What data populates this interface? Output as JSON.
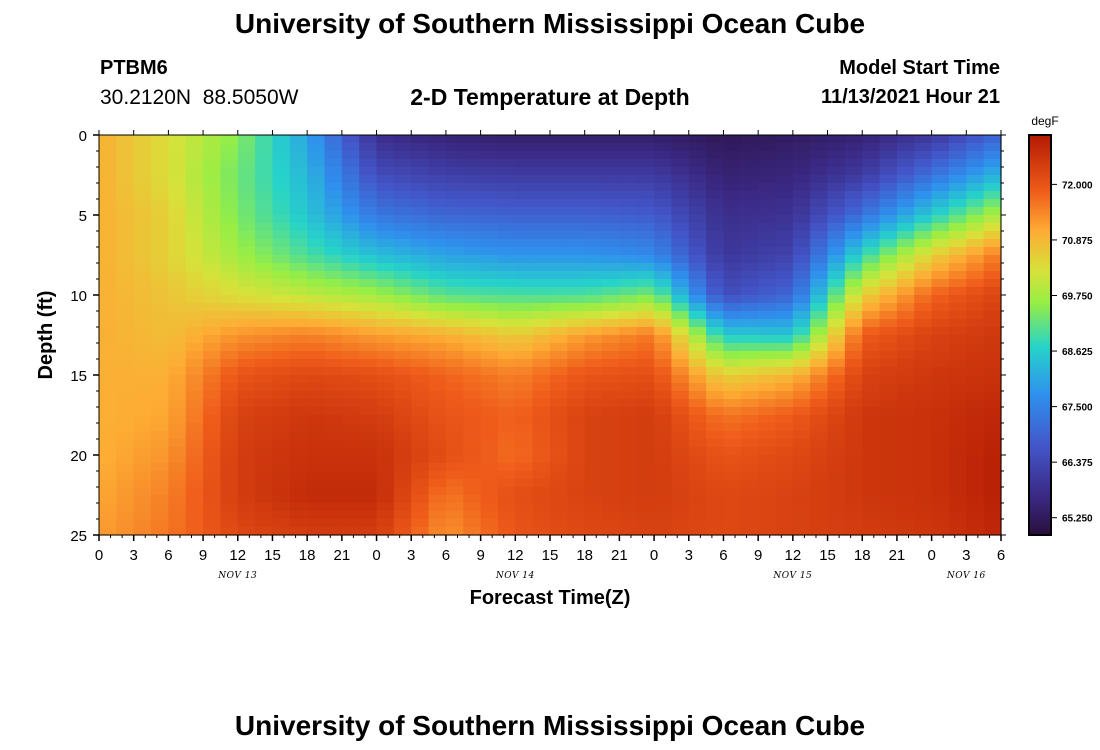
{
  "title": "University of Southern Mississippi Ocean Cube",
  "station": {
    "name": "PTBM6",
    "coords": "30.2120N  88.5050W"
  },
  "subtitle": "2-D Temperature at Depth",
  "model_start": {
    "label": "Model Start Time",
    "value": "11/13/2021 Hour 21"
  },
  "footer_title": "University of Southern Mississippi Ocean Cube",
  "chart_data": {
    "type": "heatmap",
    "title": "2-D Temperature at Depth",
    "xlabel": "Forecast Time(Z)",
    "ylabel": "Depth (ft)",
    "x_tick_labels": [
      "0",
      "3",
      "6",
      "9",
      "12",
      "15",
      "18",
      "21",
      "0",
      "3",
      "6",
      "9",
      "12",
      "15",
      "18",
      "21",
      "0",
      "3",
      "6",
      "9",
      "12",
      "15",
      "18",
      "21",
      "0",
      "3",
      "6"
    ],
    "date_labels": [
      "NOV 13",
      "NOV 14",
      "NOV 15",
      "NOV 16"
    ],
    "y_ticks": [
      0,
      5,
      10,
      15,
      20,
      25
    ],
    "ylim": [
      0,
      25
    ],
    "x_range_hours": [
      0,
      78
    ],
    "colorbar": {
      "unit": "degF",
      "ticks": [
        "72.000",
        "70.875",
        "69.750",
        "68.625",
        "67.500",
        "66.375",
        "65.250"
      ],
      "min": 64.9,
      "max": 73.0
    },
    "grid_hours": [
      0,
      6,
      12,
      18,
      24,
      30,
      36,
      42,
      48,
      54,
      60,
      66,
      72,
      78
    ],
    "grid_depths_ft": [
      0,
      2.5,
      5,
      7.5,
      10,
      12.5,
      15,
      17.5,
      20,
      22.5,
      25
    ],
    "temperature_degF": [
      [
        71.0,
        70.3,
        69.5,
        68.0,
        65.8,
        65.5,
        65.4,
        65.4,
        65.4,
        65.2,
        65.3,
        65.5,
        66.0,
        67.0
      ],
      [
        71.0,
        70.3,
        69.3,
        68.3,
        66.5,
        66.2,
        66.1,
        66.1,
        66.1,
        65.5,
        65.6,
        66.1,
        67.2,
        68.3
      ],
      [
        71.0,
        70.5,
        69.4,
        68.5,
        67.3,
        67.0,
        66.9,
        66.9,
        66.8,
        65.8,
        65.9,
        67.2,
        68.6,
        69.9
      ],
      [
        71.0,
        70.5,
        69.7,
        69.0,
        68.4,
        68.0,
        67.8,
        67.8,
        67.6,
        66.0,
        66.3,
        68.8,
        70.5,
        71.6
      ],
      [
        71.0,
        70.7,
        70.3,
        70.0,
        69.7,
        69.1,
        69.0,
        69.0,
        69.4,
        66.5,
        67.0,
        70.5,
        71.8,
        72.3
      ],
      [
        71.0,
        70.8,
        71.3,
        71.5,
        71.2,
        71.0,
        70.6,
        71.2,
        71.6,
        68.6,
        68.5,
        71.9,
        72.3,
        72.5
      ],
      [
        71.0,
        71.0,
        72.0,
        72.2,
        72.1,
        71.8,
        71.5,
        72.0,
        72.1,
        70.5,
        70.9,
        72.3,
        72.5,
        72.6
      ],
      [
        71.0,
        71.1,
        72.3,
        72.5,
        72.4,
        72.0,
        71.8,
        72.3,
        72.4,
        71.6,
        71.9,
        72.5,
        72.6,
        72.8
      ],
      [
        71.0,
        71.3,
        72.4,
        72.6,
        72.6,
        72.1,
        71.7,
        72.3,
        72.4,
        72.0,
        72.2,
        72.5,
        72.6,
        72.9
      ],
      [
        71.1,
        71.5,
        72.4,
        72.7,
        72.7,
        71.6,
        72.1,
        72.3,
        72.4,
        72.2,
        72.3,
        72.5,
        72.6,
        72.9
      ],
      [
        71.2,
        71.6,
        72.2,
        72.4,
        72.4,
        71.3,
        72.0,
        72.2,
        72.3,
        72.2,
        72.3,
        72.4,
        72.5,
        72.8
      ]
    ]
  }
}
